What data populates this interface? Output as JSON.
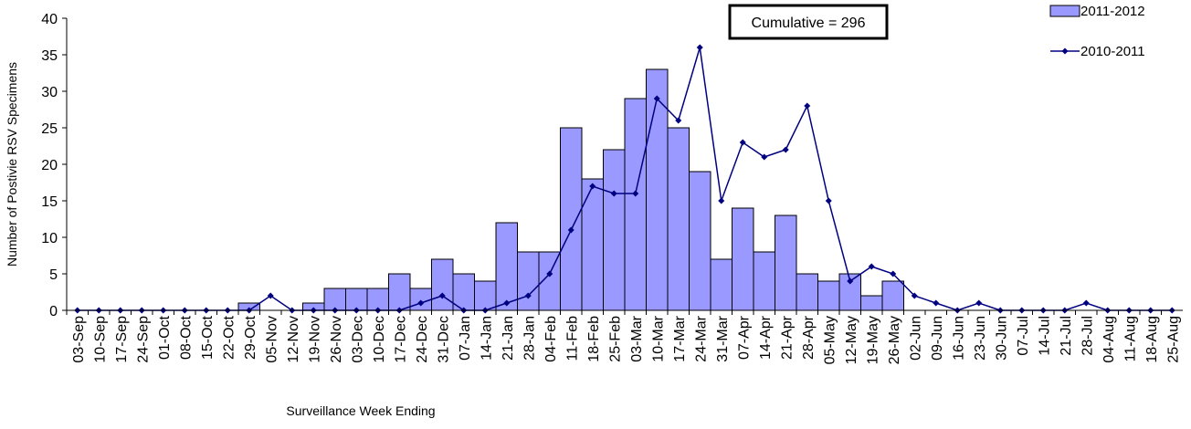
{
  "chart_data": {
    "type": "bar-line",
    "annotation": "Cumulative = 296",
    "x_label": "Surveillance Week Ending",
    "y_label": "Number of Postivie RSV Specimens",
    "categories": [
      "03-Sep",
      "10-Sep",
      "17-Sep",
      "24-Sep",
      "01-Oct",
      "08-Oct",
      "15-Oct",
      "22-Oct",
      "29-Oct",
      "05-Nov",
      "12-Nov",
      "19-Nov",
      "26-Nov",
      "03-Dec",
      "10-Dec",
      "17-Dec",
      "24-Dec",
      "31-Dec",
      "07-Jan",
      "14-Jan",
      "21-Jan",
      "28-Jan",
      "04-Feb",
      "11-Feb",
      "18-Feb",
      "25-Feb",
      "03-Mar",
      "10-Mar",
      "17-Mar",
      "24-Mar",
      "31-Mar",
      "07-Apr",
      "14-Apr",
      "21-Apr",
      "28-Apr",
      "05-May",
      "12-May",
      "19-May",
      "26-May",
      "02-Jun",
      "09-Jun",
      "16-Jun",
      "23-Jun",
      "30-Jun",
      "07-Jul",
      "14-Jul",
      "21-Jul",
      "28-Jul",
      "04-Aug",
      "11-Aug",
      "18-Aug",
      "25-Aug"
    ],
    "series": [
      {
        "name": "2011-2012",
        "type": "bar",
        "color": "#9999ff",
        "values": [
          0,
          0,
          0,
          0,
          0,
          0,
          0,
          0,
          1,
          0,
          0,
          1,
          3,
          3,
          3,
          5,
          3,
          7,
          5,
          4,
          12,
          8,
          8,
          25,
          18,
          22,
          29,
          33,
          25,
          19,
          7,
          14,
          8,
          13,
          5,
          4,
          5,
          2,
          4,
          null,
          null,
          null,
          null,
          null,
          null,
          null,
          null,
          null,
          null,
          null,
          null,
          null
        ]
      },
      {
        "name": "2010-2011",
        "type": "line",
        "color": "#000080",
        "values": [
          0,
          0,
          0,
          0,
          0,
          0,
          0,
          0,
          0,
          2,
          0,
          0,
          0,
          0,
          0,
          0,
          1,
          2,
          0,
          0,
          1,
          2,
          5,
          11,
          17,
          16,
          16,
          29,
          26,
          36,
          15,
          23,
          21,
          22,
          28,
          15,
          4,
          6,
          5,
          2,
          1,
          0,
          1,
          0,
          0,
          0,
          0,
          1,
          0,
          0,
          0,
          0
        ]
      }
    ],
    "ylim": [
      0,
      40
    ],
    "yticks": [
      0,
      5,
      10,
      15,
      20,
      25,
      30,
      35,
      40
    ]
  }
}
